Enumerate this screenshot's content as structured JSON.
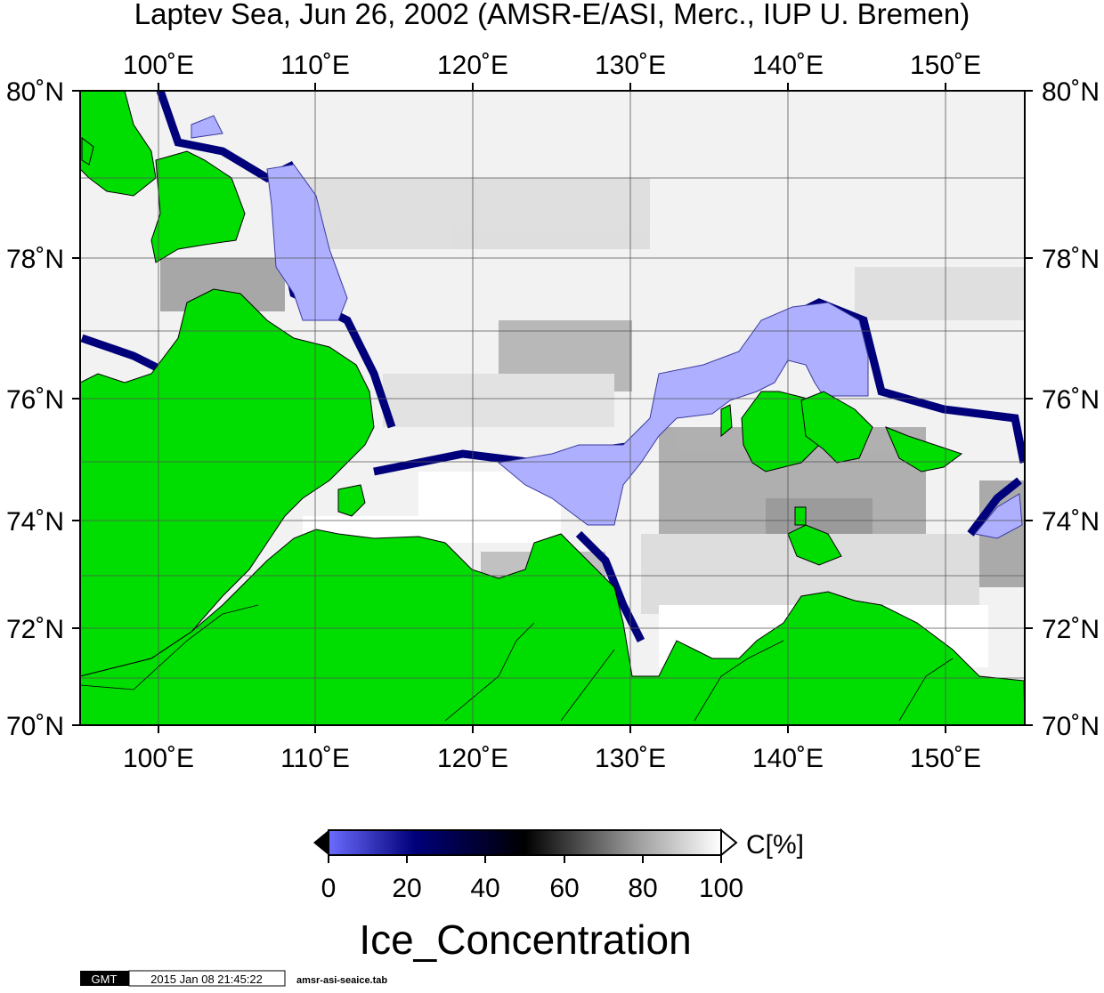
{
  "title": "Laptev Sea, Jun 26, 2002 (AMSR-E/ASI, Merc., IUP U. Bremen)",
  "lon_labels": [
    "100˚E",
    "110˚E",
    "120˚E",
    "130˚E",
    "140˚E",
    "150˚E"
  ],
  "lat_labels": [
    "80˚N",
    "78˚N",
    "76˚N",
    "74˚N",
    "72˚N",
    "70˚N"
  ],
  "colorbar": {
    "unit": "C[%]",
    "ticks": [
      "0",
      "20",
      "40",
      "60",
      "80",
      "100"
    ],
    "label": "Ice_Concentration"
  },
  "footer": {
    "logo": "GMT",
    "timestamp": "2015 Jan 08 21:45:22",
    "filename": "amsr-asi-seaice.tab"
  },
  "colors": {
    "land": "#00dd00",
    "open_water": "#aeb0ff",
    "low_concentration": "#00007a",
    "mid_concentration": "#000000",
    "high_concentration": "#ffffff"
  }
}
